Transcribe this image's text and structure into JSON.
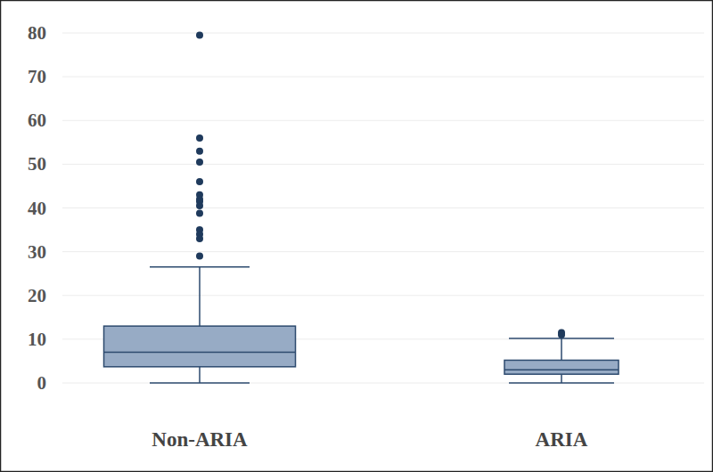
{
  "chart_data": {
    "type": "box",
    "categories": [
      "Non-ARIA",
      "ARIA"
    ],
    "boxes": [
      {
        "min": 0,
        "q1": 3.7,
        "median": 7,
        "q3": 13,
        "max": 26.5,
        "outliers": [
          79.5,
          56,
          53,
          50.5,
          46,
          43,
          42,
          41.5,
          40.5,
          38.8,
          35,
          34,
          33,
          29
        ]
      },
      {
        "min": 0,
        "q1": 2,
        "median": 3,
        "q3": 5.2,
        "max": 10.2,
        "outliers": [
          11.5,
          11
        ]
      }
    ],
    "color": "#97abc5",
    "ylim": [
      0,
      80
    ],
    "yticks": [
      0,
      10,
      20,
      30,
      40,
      50,
      60,
      70,
      80
    ],
    "grid": true
  }
}
